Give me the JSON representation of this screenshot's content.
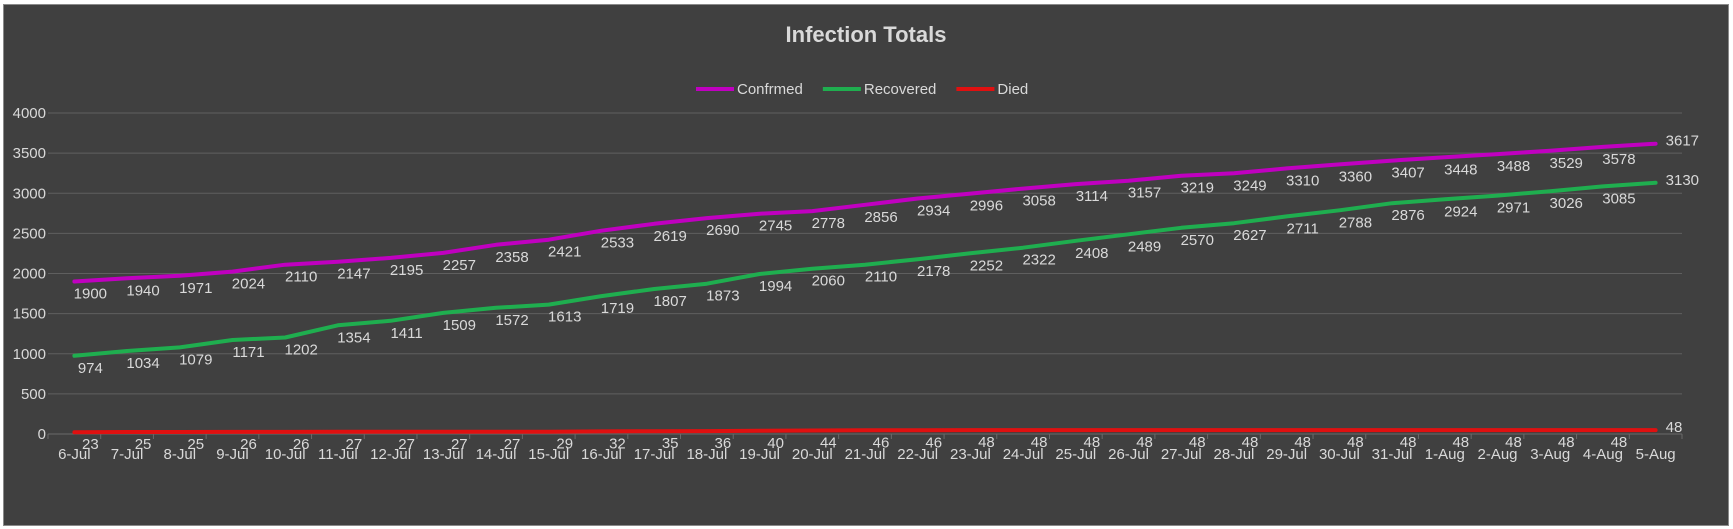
{
  "chart_data": {
    "type": "line",
    "title": "Infection Totals",
    "xlabel": "",
    "ylabel": "",
    "ylim": [
      0,
      4000
    ],
    "yticks": [
      0,
      500,
      1000,
      1500,
      2000,
      2500,
      3000,
      3500,
      4000
    ],
    "grid": true,
    "legend_position": "top",
    "categories": [
      "6-Jul",
      "7-Jul",
      "8-Jul",
      "9-Jul",
      "10-Jul",
      "11-Jul",
      "12-Jul",
      "13-Jul",
      "14-Jul",
      "15-Jul",
      "16-Jul",
      "17-Jul",
      "18-Jul",
      "19-Jul",
      "20-Jul",
      "21-Jul",
      "22-Jul",
      "23-Jul",
      "24-Jul",
      "25-Jul",
      "26-Jul",
      "27-Jul",
      "28-Jul",
      "29-Jul",
      "30-Jul",
      "31-Jul",
      "1-Aug",
      "2-Aug",
      "3-Aug",
      "4-Aug",
      "5-Aug"
    ],
    "series": [
      {
        "name": "Confrmed",
        "color": "#c000c0",
        "values": [
          1900,
          1940,
          1971,
          2024,
          2110,
          2147,
          2195,
          2257,
          2358,
          2421,
          2533,
          2619,
          2690,
          2745,
          2778,
          2856,
          2934,
          2996,
          3058,
          3114,
          3157,
          3219,
          3249,
          3310,
          3360,
          3407,
          3448,
          3488,
          3529,
          3578,
          3617
        ]
      },
      {
        "name": "Recovered",
        "color": "#1fae4f",
        "values": [
          974,
          1034,
          1079,
          1171,
          1202,
          1354,
          1411,
          1509,
          1572,
          1613,
          1719,
          1807,
          1873,
          1994,
          2060,
          2110,
          2178,
          2252,
          2322,
          2408,
          2489,
          2570,
          2627,
          2711,
          2788,
          2876,
          2924,
          2971,
          3026,
          3085,
          3130
        ]
      },
      {
        "name": "Died",
        "color": "#e01010",
        "values": [
          23,
          25,
          25,
          26,
          26,
          27,
          27,
          27,
          27,
          29,
          32,
          35,
          36,
          40,
          44,
          46,
          46,
          48,
          48,
          48,
          48,
          48,
          48,
          48,
          48,
          48,
          48,
          48,
          48,
          48,
          48
        ]
      }
    ]
  }
}
